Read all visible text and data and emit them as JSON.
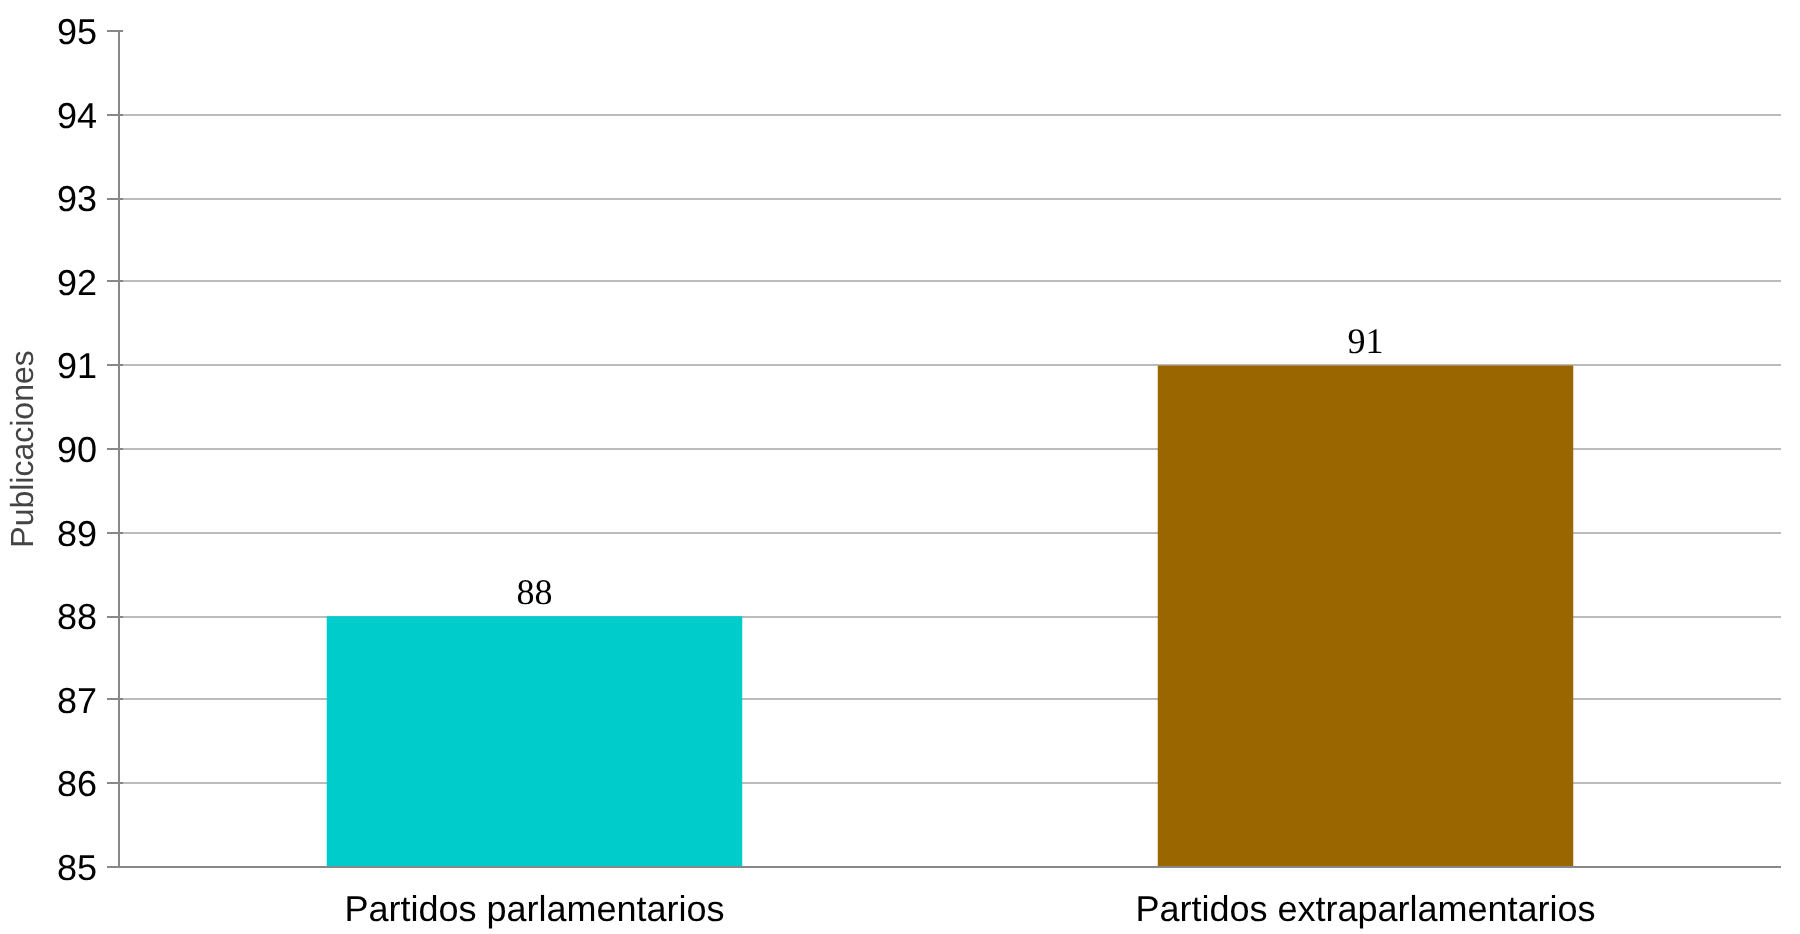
{
  "chart_data": {
    "type": "bar",
    "ylabel": "Publicaciones",
    "categories": [
      "Partidos parlamentarios",
      "Partidos extraparlamentarios"
    ],
    "values": [
      88,
      91
    ],
    "colors": [
      "#00cccc",
      "#996600"
    ],
    "ylim": [
      85,
      95
    ],
    "yticks": [
      85,
      86,
      87,
      88,
      89,
      90,
      91,
      92,
      93,
      94,
      95
    ],
    "grid": "y",
    "data_labels": true
  }
}
